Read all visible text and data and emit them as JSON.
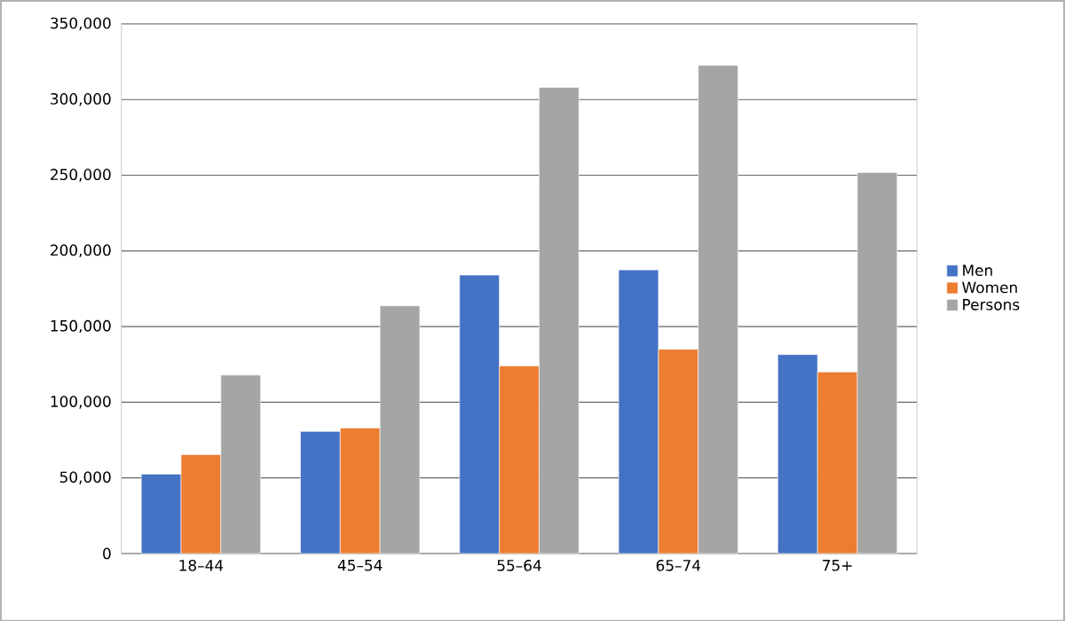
{
  "chart_data": {
    "type": "bar",
    "categories": [
      "18–44",
      "45–54",
      "55–64",
      "65–74",
      "75+"
    ],
    "series": [
      {
        "name": "Men",
        "color": "#4472c4",
        "values": [
          52500,
          80700,
          184000,
          187500,
          131500
        ]
      },
      {
        "name": "Women",
        "color": "#ed7d31",
        "values": [
          65400,
          83000,
          124000,
          135000,
          120000
        ]
      },
      {
        "name": "Persons",
        "color": "#a5a5a5",
        "values": [
          117900,
          163700,
          308000,
          322600,
          251800
        ]
      }
    ],
    "ylim": [
      0,
      350000
    ],
    "yticks": [
      {
        "value": 0,
        "label": "0"
      },
      {
        "value": 50000,
        "label": "50,000"
      },
      {
        "value": 100000,
        "label": "100,000"
      },
      {
        "value": 150000,
        "label": "150,000"
      },
      {
        "value": 200000,
        "label": "200,000"
      },
      {
        "value": 250000,
        "label": "250,000"
      },
      {
        "value": 300000,
        "label": "300,000"
      },
      {
        "value": 350000,
        "label": "350,000"
      }
    ],
    "grid": "y",
    "legend": "right"
  }
}
